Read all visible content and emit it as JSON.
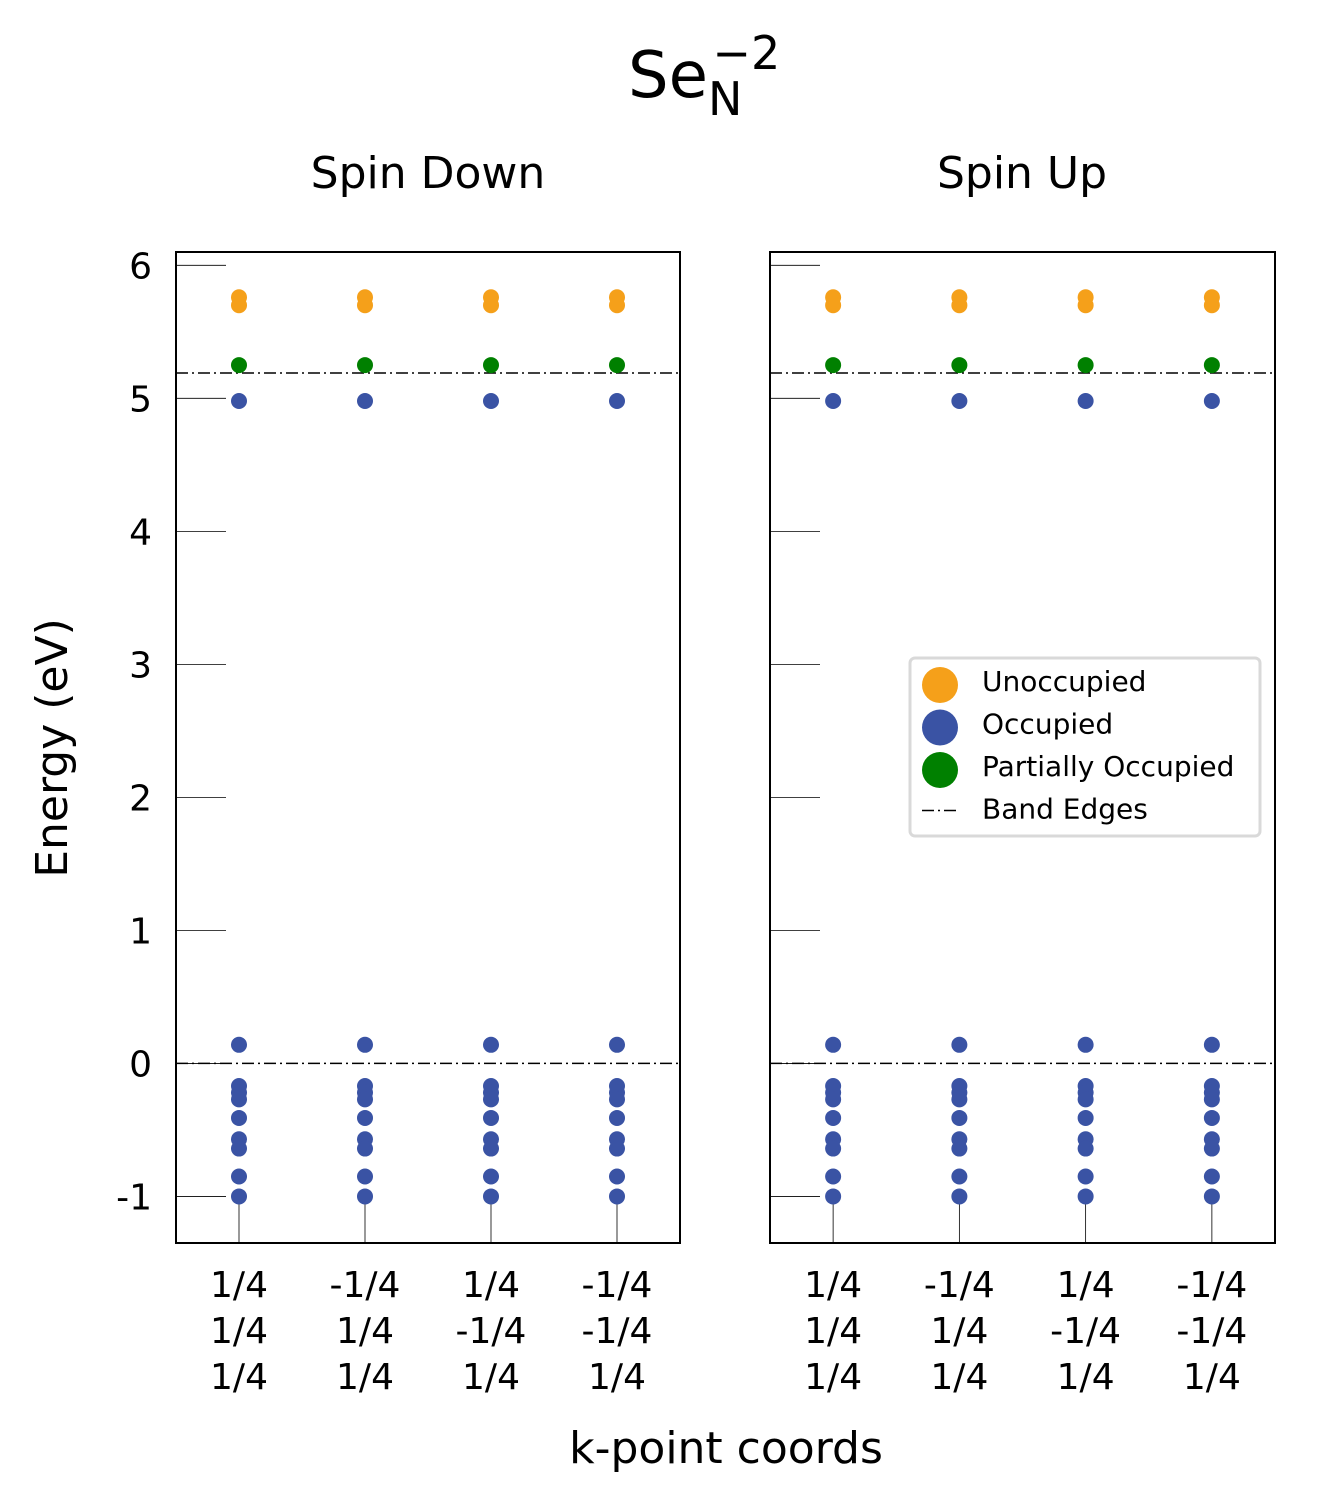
{
  "chart_data": {
    "type": "scatter",
    "title": {
      "base": "Se",
      "sub": "N",
      "sup": "−2"
    },
    "xlabel": "k-point coords",
    "ylabel": "Energy (eV)",
    "ylim": [
      -1.35,
      6.1
    ],
    "yticks": [
      -1,
      0,
      1,
      2,
      3,
      4,
      5,
      6
    ],
    "yticklabels": [
      "-1",
      "0",
      "1",
      "2",
      "3",
      "4",
      "5",
      "6"
    ],
    "kpoint_labels": [
      [
        "1/4",
        "1/4",
        "1/4"
      ],
      [
        "-1/4",
        "1/4",
        "1/4"
      ],
      [
        "1/4",
        "-1/4",
        "1/4"
      ],
      [
        "-1/4",
        "-1/4",
        "1/4"
      ]
    ],
    "band_edges": [
      0.0,
      5.19
    ],
    "colors": {
      "unoccupied": "#f5a01a",
      "occupied": "#3a53a4",
      "partially_occupied": "#008000",
      "band_edge": "#000000"
    },
    "panels": [
      {
        "title": "Spin Down",
        "series": [
          {
            "name": "Unoccupied",
            "energies": [
              5.76,
              5.7
            ]
          },
          {
            "name": "Occupied",
            "energies": [
              4.98,
              0.14,
              -0.17,
              -0.22,
              -0.27,
              -0.41,
              -0.57,
              -0.64,
              -0.85,
              -1.0
            ]
          },
          {
            "name": "Partially Occupied",
            "energies": [
              5.25
            ]
          }
        ]
      },
      {
        "title": "Spin Up",
        "series": [
          {
            "name": "Unoccupied",
            "energies": [
              5.76,
              5.7
            ]
          },
          {
            "name": "Occupied",
            "energies": [
              4.98,
              0.14,
              -0.17,
              -0.22,
              -0.27,
              -0.41,
              -0.57,
              -0.64,
              -0.85,
              -1.0
            ]
          },
          {
            "name": "Partially Occupied",
            "energies": [
              5.25
            ]
          }
        ]
      }
    ],
    "legend": {
      "placement": "center-right",
      "entries": [
        "Unoccupied",
        "Occupied",
        "Partially Occupied",
        "Band Edges"
      ]
    }
  }
}
